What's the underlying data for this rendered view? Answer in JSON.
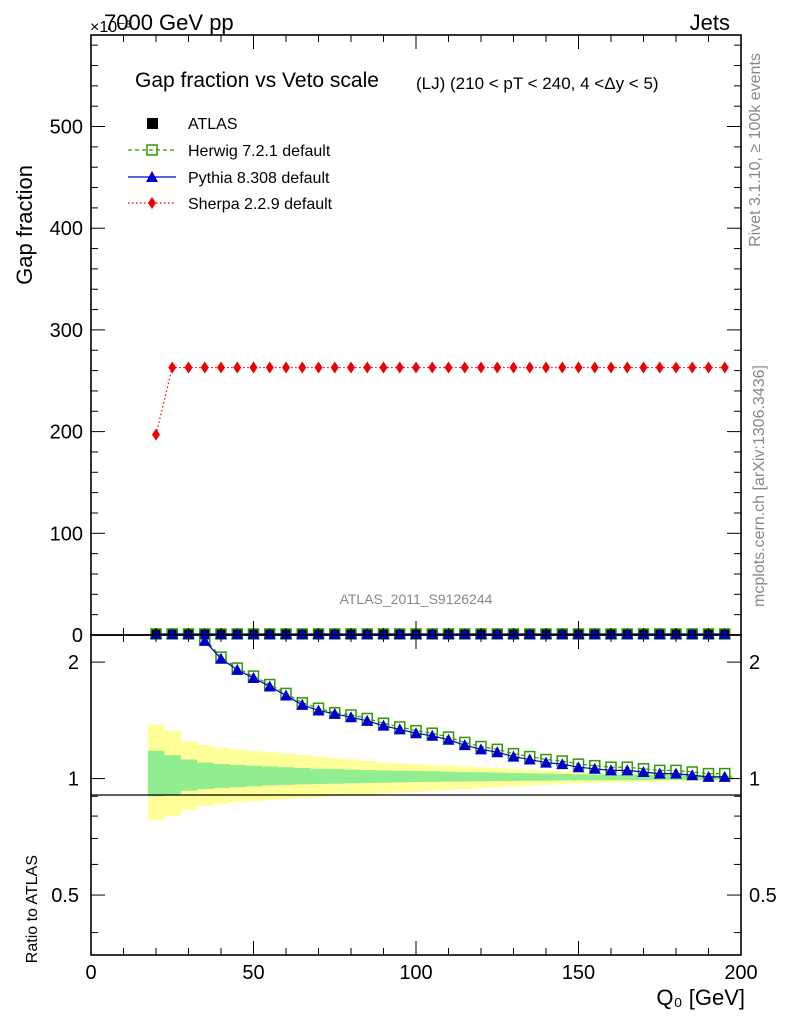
{
  "header": {
    "energy_label": "7000 GeV pp",
    "process_label": "Jets",
    "exponent_label": "×10⁻³",
    "title_main": "Gap fraction vs Veto scale",
    "title_sub": "(LJ) (210 < pT < 240, 4 <Δy < 5)",
    "analysis_id": "ATLAS_2011_S9126244",
    "rivet_label": "Rivet 3.1.10, ≥ 100k events",
    "mcplots_label": "mcplots.cern.ch [arXiv:1306.3436]"
  },
  "legend": [
    {
      "label": "ATLAS",
      "marker": "square-filled",
      "color": "#000000"
    },
    {
      "label": "Herwig 7.2.1 default",
      "marker": "square-open",
      "color": "#339900",
      "line": "dashed"
    },
    {
      "label": "Pythia 8.308 default",
      "marker": "triangle",
      "color": "#0000cc",
      "line": "solid"
    },
    {
      "label": "Sherpa 2.2.9 default",
      "marker": "diamond",
      "color": "#ee0000",
      "line": "dotted"
    }
  ],
  "chart_data": [
    {
      "type": "line",
      "ylabel": "Gap fraction",
      "ylim": [
        0,
        590
      ],
      "xlim": [
        0,
        200
      ],
      "yticks": [
        0,
        100,
        200,
        300,
        400,
        500
      ],
      "series": [
        {
          "name": "ATLAS",
          "x": [
            20,
            25,
            30,
            35,
            40,
            45,
            50,
            55,
            60,
            65,
            70,
            75,
            80,
            85,
            90,
            95,
            100,
            105,
            110,
            115,
            120,
            125,
            130,
            135,
            140,
            145,
            150,
            155,
            160,
            165,
            170,
            175,
            180,
            185,
            190,
            195
          ],
          "values": [
            1,
            1,
            1,
            1,
            1,
            1,
            1,
            1,
            1,
            1,
            1,
            1,
            1,
            1,
            1,
            1,
            1,
            1,
            1,
            1,
            1,
            1,
            1,
            1,
            1,
            1,
            1,
            1,
            1,
            1,
            1,
            1,
            1,
            1,
            1,
            1
          ]
        },
        {
          "name": "Herwig 7.2.1 default",
          "x": [
            20,
            25,
            30,
            35,
            40,
            45,
            50,
            55,
            60,
            65,
            70,
            75,
            80,
            85,
            90,
            95,
            100,
            105,
            110,
            115,
            120,
            125,
            130,
            135,
            140,
            145,
            150,
            155,
            160,
            165,
            170,
            175,
            180,
            185,
            190,
            195
          ],
          "values": [
            1,
            1,
            1,
            1,
            1,
            1,
            1,
            1,
            1,
            1,
            1,
            1,
            1,
            1,
            1,
            1,
            1,
            1,
            1,
            1,
            1,
            1,
            1,
            1,
            1,
            1,
            1,
            1,
            1,
            1,
            1,
            1,
            1,
            1,
            1,
            1
          ]
        },
        {
          "name": "Pythia 8.308 default",
          "x": [
            20,
            25,
            30,
            35,
            40,
            45,
            50,
            55,
            60,
            65,
            70,
            75,
            80,
            85,
            90,
            95,
            100,
            105,
            110,
            115,
            120,
            125,
            130,
            135,
            140,
            145,
            150,
            155,
            160,
            165,
            170,
            175,
            180,
            185,
            190,
            195
          ],
          "values": [
            1,
            1,
            1,
            1,
            1,
            1,
            1,
            1,
            1,
            1,
            1,
            1,
            1,
            1,
            1,
            1,
            1,
            1,
            1,
            1,
            1,
            1,
            1,
            1,
            1,
            1,
            1,
            1,
            1,
            1,
            1,
            1,
            1,
            1,
            1,
            1
          ]
        },
        {
          "name": "Sherpa 2.2.9 default",
          "x": [
            20,
            25,
            30,
            35,
            40,
            45,
            50,
            55,
            60,
            65,
            70,
            75,
            80,
            85,
            90,
            95,
            100,
            105,
            110,
            115,
            120,
            125,
            130,
            135,
            140,
            145,
            150,
            155,
            160,
            165,
            170,
            175,
            180,
            185,
            190,
            195
          ],
          "values": [
            197,
            263,
            263,
            263,
            263,
            263,
            263,
            263,
            263,
            263,
            263,
            263,
            263,
            263,
            263,
            263,
            263,
            263,
            263,
            263,
            263,
            263,
            263,
            263,
            263,
            263,
            263,
            263,
            263,
            263,
            263,
            263,
            263,
            263,
            263,
            263
          ]
        }
      ]
    },
    {
      "type": "line",
      "xlabel": "Q₀ [GeV]",
      "ylabel": "Ratio to ATLAS",
      "log_y": true,
      "ylim": [
        0.35,
        2.35
      ],
      "xlim": [
        0,
        200
      ],
      "xticks": [
        0,
        50,
        100,
        150,
        200
      ],
      "yticks": [
        0.5,
        1,
        2
      ],
      "band_x": [
        17.5,
        22.5,
        27.5,
        32.5,
        37.5,
        42.5,
        47.5,
        52.5,
        57.5,
        62.5,
        67.5,
        72.5,
        77.5,
        82.5,
        87.5,
        92.5,
        97.5,
        102.5,
        107.5,
        112.5,
        117.5,
        122.5,
        127.5,
        132.5,
        137.5,
        142.5,
        147.5,
        152.5,
        157.5,
        162.5,
        167.5,
        172.5,
        177.5,
        182.5,
        187.5,
        192.5,
        197.5
      ],
      "bands": [
        {
          "name": "stat",
          "color": "#90ee90",
          "lower": [
            0.9,
            0.91,
            0.93,
            0.94,
            0.945,
            0.95,
            0.955,
            0.96,
            0.963,
            0.966,
            0.968,
            0.97,
            0.972,
            0.974,
            0.976,
            0.978,
            0.98,
            0.981,
            0.982,
            0.983,
            0.984,
            0.985,
            0.986,
            0.987,
            0.988,
            0.989,
            0.99,
            0.99,
            0.991,
            0.991,
            0.992,
            0.992,
            0.993,
            0.993,
            0.994,
            0.994
          ],
          "upper": [
            1.18,
            1.15,
            1.12,
            1.1,
            1.09,
            1.085,
            1.08,
            1.075,
            1.07,
            1.065,
            1.06,
            1.058,
            1.055,
            1.052,
            1.05,
            1.048,
            1.046,
            1.044,
            1.042,
            1.04,
            1.038,
            1.036,
            1.034,
            1.032,
            1.03,
            1.028,
            1.026,
            1.025,
            1.024,
            1.023,
            1.022,
            1.021,
            1.02,
            1.019,
            1.018,
            1.017
          ]
        },
        {
          "name": "total",
          "color": "#ffff99",
          "lower": [
            0.78,
            0.8,
            0.83,
            0.85,
            0.86,
            0.87,
            0.875,
            0.88,
            0.885,
            0.89,
            0.895,
            0.9,
            0.905,
            0.91,
            0.915,
            0.92,
            0.925,
            0.93,
            0.935,
            0.94,
            0.945,
            0.95,
            0.955,
            0.96,
            0.965,
            0.97,
            0.972,
            0.974,
            0.976,
            0.978,
            0.98,
            0.982,
            0.984,
            0.986,
            0.988,
            0.99
          ],
          "upper": [
            1.38,
            1.33,
            1.25,
            1.22,
            1.2,
            1.19,
            1.18,
            1.17,
            1.16,
            1.15,
            1.14,
            1.13,
            1.12,
            1.11,
            1.1,
            1.095,
            1.09,
            1.085,
            1.08,
            1.075,
            1.07,
            1.065,
            1.06,
            1.055,
            1.05,
            1.045,
            1.04,
            1.038,
            1.036,
            1.034,
            1.032,
            1.03,
            1.028,
            1.026,
            1.024,
            1.02
          ]
        }
      ],
      "series": [
        {
          "name": "Herwig 7.2.1 default",
          "x": [
            35,
            40,
            45,
            50,
            55,
            60,
            65,
            70,
            75,
            80,
            85,
            90,
            95,
            100,
            105,
            110,
            115,
            120,
            125,
            130,
            135,
            140,
            145,
            150,
            155,
            160,
            165,
            170,
            175,
            180,
            185,
            190,
            195
          ],
          "values": [
            2.3,
            2.06,
            1.93,
            1.84,
            1.75,
            1.66,
            1.57,
            1.52,
            1.48,
            1.46,
            1.43,
            1.39,
            1.36,
            1.33,
            1.31,
            1.28,
            1.24,
            1.21,
            1.19,
            1.16,
            1.14,
            1.12,
            1.11,
            1.09,
            1.08,
            1.07,
            1.07,
            1.06,
            1.05,
            1.05,
            1.04,
            1.03,
            1.03
          ]
        },
        {
          "name": "Pythia 8.308 default",
          "x": [
            35,
            40,
            45,
            50,
            55,
            60,
            65,
            70,
            75,
            80,
            85,
            90,
            95,
            100,
            105,
            110,
            115,
            120,
            125,
            130,
            135,
            140,
            145,
            150,
            155,
            160,
            165,
            170,
            175,
            180,
            185,
            190,
            195
          ],
          "values": [
            2.27,
            2.04,
            1.91,
            1.82,
            1.73,
            1.64,
            1.55,
            1.5,
            1.47,
            1.44,
            1.41,
            1.37,
            1.34,
            1.31,
            1.29,
            1.26,
            1.22,
            1.19,
            1.17,
            1.14,
            1.12,
            1.1,
            1.09,
            1.07,
            1.06,
            1.05,
            1.05,
            1.04,
            1.03,
            1.03,
            1.02,
            1.01,
            1.01
          ]
        }
      ]
    }
  ]
}
